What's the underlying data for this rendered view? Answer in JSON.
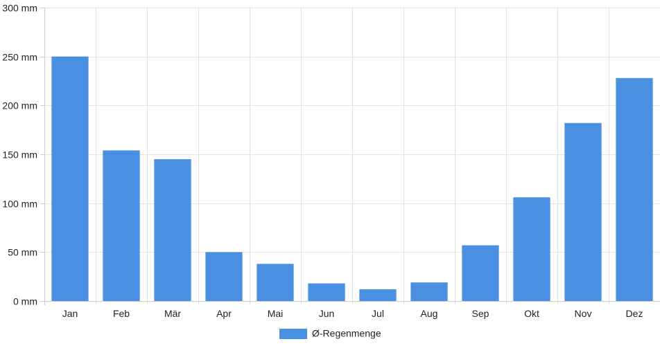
{
  "chart_data": {
    "type": "bar",
    "categories": [
      "Jan",
      "Feb",
      "Mär",
      "Apr",
      "Mai",
      "Jun",
      "Jul",
      "Aug",
      "Sep",
      "Okt",
      "Nov",
      "Dez"
    ],
    "series": [
      {
        "name": "Ø-Regenmenge",
        "values": [
          250,
          154,
          145,
          50,
          38,
          18,
          12,
          19,
          57,
          106,
          182,
          228
        ]
      }
    ],
    "ylim": [
      0,
      300
    ],
    "yticks": [
      0,
      50,
      100,
      150,
      200,
      250,
      300
    ],
    "ytick_suffix": " mm",
    "grid": true,
    "legend_position": "bottom",
    "colors": {
      "bar": "#4a90e2",
      "grid": "#e2e2e2",
      "axis": "#cccccc",
      "text": "#222222"
    }
  }
}
